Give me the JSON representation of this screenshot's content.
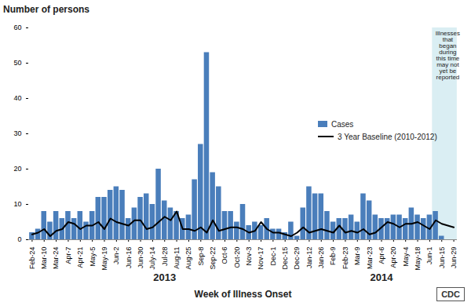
{
  "chart_data": {
    "type": "bar",
    "title": "Number of persons",
    "x_label": "Week of Illness Onset",
    "categories": [
      "Feb-24",
      null,
      "Mar-10",
      null,
      "Mar-24",
      null,
      "Apr-7",
      null,
      "Apr-21",
      null,
      "May-5",
      null,
      "May-19",
      null,
      "Jun-2",
      null,
      "Jun-16",
      null,
      "Jun-30",
      null,
      "July-14",
      null,
      "Jul-28",
      null,
      "Aug-11",
      null,
      "Aug-25",
      null,
      "Sep-8",
      null,
      "Sep-22",
      null,
      "Oct-6",
      null,
      "Oct-20",
      null,
      "Nov-3",
      null,
      "Nov-17",
      null,
      "Dec-1",
      null,
      "Dec-15",
      null,
      "Dec-29",
      null,
      "Jan-12",
      null,
      "Jan-26",
      null,
      "Feb-9",
      null,
      "Feb-23",
      null,
      "Mar-9",
      null,
      "Mar-23",
      null,
      "Apr-6",
      null,
      "Apr-20",
      null,
      "May-4",
      null,
      "May-18",
      null,
      "Jun-1",
      null,
      "Jun-15",
      null,
      "Jun-29"
    ],
    "series": [
      {
        "name": "Cases",
        "type": "bar",
        "color": "#4a7ebb",
        "values": [
          2,
          3,
          8,
          5,
          8,
          6,
          8,
          6,
          8,
          5,
          8,
          12,
          12,
          14,
          15,
          14,
          6,
          9,
          12,
          13,
          10,
          20,
          11,
          9,
          8,
          6,
          7,
          17,
          27,
          53,
          19,
          15,
          8,
          8,
          5,
          10,
          4,
          5,
          4,
          6,
          3,
          3,
          2,
          5,
          1,
          9,
          15,
          13,
          13,
          8,
          5,
          6,
          6,
          7,
          5,
          13,
          11,
          7,
          6,
          6,
          7,
          7,
          6,
          9,
          7,
          6,
          7,
          8,
          1,
          null,
          null
        ]
      },
      {
        "name": "3 Year Baseline (2010-2012)",
        "type": "line",
        "color": "#000000",
        "values": [
          1.5,
          2,
          3,
          1,
          2.5,
          3,
          5,
          4.5,
          3,
          4,
          4,
          5,
          3,
          6,
          5,
          4.5,
          4,
          5.5,
          5.5,
          3,
          3.5,
          5,
          6.5,
          5.5,
          8,
          3,
          3,
          2.5,
          3.5,
          2,
          5.5,
          2.5,
          3,
          3.5,
          3.5,
          3,
          2,
          2.5,
          5,
          3,
          2,
          2,
          1.5,
          1,
          2,
          3.5,
          2,
          2.5,
          3,
          2.5,
          2,
          4,
          2,
          2.5,
          2,
          3,
          1.5,
          2,
          3.5,
          5,
          4.5,
          3.5,
          4.5,
          4.5,
          5,
          4,
          3,
          5.5,
          4.5,
          4,
          3.5
        ]
      }
    ],
    "ylim": [
      0,
      60
    ],
    "yticks": [
      0,
      10,
      20,
      30,
      40,
      50,
      60
    ],
    "grid": false,
    "legend": "right",
    "year_labels": [
      {
        "label": "2013",
        "from": 0,
        "to": 44
      },
      {
        "label": "2014",
        "from": 45,
        "to": 70
      }
    ],
    "annotations": [
      {
        "text": "Illnesses that began during this time may not yet be reported",
        "from": 67,
        "to": 70
      }
    ],
    "logo": "CDC"
  }
}
